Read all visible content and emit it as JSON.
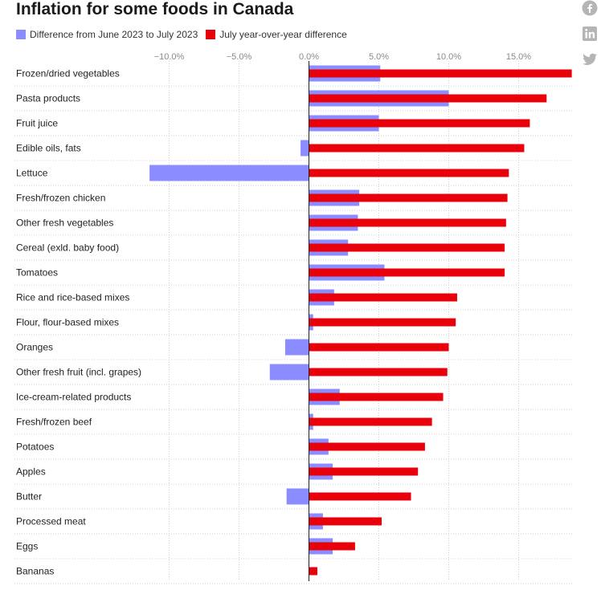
{
  "chart_data": {
    "type": "bar",
    "title": "Inflation for some foods in Canada",
    "orientation": "horizontal",
    "categories": [
      "Frozen/dried vegetables",
      "Pasta products",
      "Fruit juice",
      "Edible oils, fats",
      "Lettuce",
      "Fresh/frozen chicken",
      "Other fresh vegetables",
      "Cereal (exld. baby food)",
      "Tomatoes",
      "Rice and rice-based mixes",
      "Flour, flour-based mixes",
      "Oranges",
      "Other fresh fruit (incl. grapes)",
      "Ice-cream-related products",
      "Fresh/frozen beef",
      "Potatoes",
      "Apples",
      "Butter",
      "Processed meat",
      "Eggs",
      "Bananas"
    ],
    "series": [
      {
        "name": "Difference from June 2023 to July 2023",
        "color": "#8a8cff",
        "values": [
          5.1,
          10.0,
          5.0,
          -0.6,
          -11.4,
          3.6,
          3.5,
          2.8,
          5.4,
          1.8,
          0.3,
          -1.7,
          -2.8,
          2.2,
          0.3,
          1.4,
          1.7,
          -1.6,
          1.0,
          1.7,
          0.0
        ]
      },
      {
        "name": "July year-over-year difference",
        "color": "#e8000b",
        "values": [
          18.8,
          17.0,
          15.8,
          15.4,
          14.3,
          14.2,
          14.1,
          14.0,
          14.0,
          10.6,
          10.5,
          10.0,
          9.9,
          9.6,
          8.8,
          8.3,
          7.8,
          7.3,
          5.2,
          3.3,
          0.6
        ]
      }
    ],
    "x_ticks": [
      -10,
      -5,
      0,
      5,
      10,
      15
    ],
    "x_tick_labels": [
      "−10.0%",
      "−5.0%",
      "0.0%",
      "5.0%",
      "10.0%",
      "15.0%"
    ],
    "xlim": [
      -12,
      19.1
    ],
    "grid": true,
    "legend_position": "top-left",
    "axis_color": "#222222",
    "grid_color": "#cfcfcf"
  },
  "share": {
    "icons": [
      "facebook-icon",
      "linkedin-icon",
      "twitter-icon"
    ],
    "icon_color": "#b5b5b5"
  }
}
